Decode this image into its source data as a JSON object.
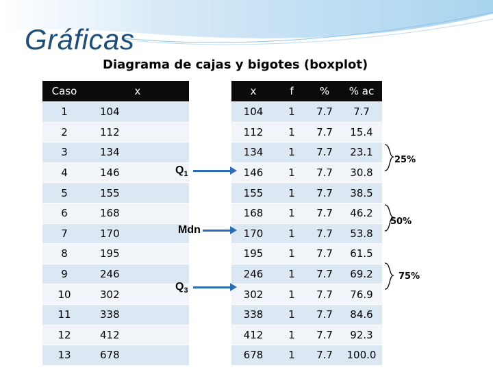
{
  "title": "Gráficas",
  "subtitle": "Diagrama de cajas y bigotes (boxplot)",
  "left_table": {
    "headers": [
      "Caso",
      "x"
    ],
    "rows": [
      [
        "1",
        "104"
      ],
      [
        "2",
        "112"
      ],
      [
        "3",
        "134"
      ],
      [
        "4",
        "146"
      ],
      [
        "5",
        "155"
      ],
      [
        "6",
        "168"
      ],
      [
        "7",
        "170"
      ],
      [
        "8",
        "195"
      ],
      [
        "9",
        "246"
      ],
      [
        "10",
        "302"
      ],
      [
        "11",
        "338"
      ],
      [
        "12",
        "412"
      ],
      [
        "13",
        "678"
      ]
    ]
  },
  "right_table": {
    "headers": [
      "x",
      "f",
      "%",
      "% ac"
    ],
    "rows": [
      [
        "104",
        "1",
        "7.7",
        "7.7"
      ],
      [
        "112",
        "1",
        "7.7",
        "15.4"
      ],
      [
        "134",
        "1",
        "7.7",
        "23.1"
      ],
      [
        "146",
        "1",
        "7.7",
        "30.8"
      ],
      [
        "155",
        "1",
        "7.7",
        "38.5"
      ],
      [
        "168",
        "1",
        "7.7",
        "46.2"
      ],
      [
        "170",
        "1",
        "7.7",
        "53.8"
      ],
      [
        "195",
        "1",
        "7.7",
        "61.5"
      ],
      [
        "246",
        "1",
        "7.7",
        "69.2"
      ],
      [
        "302",
        "1",
        "7.7",
        "76.9"
      ],
      [
        "338",
        "1",
        "7.7",
        "84.6"
      ],
      [
        "412",
        "1",
        "7.7",
        "92.3"
      ],
      [
        "678",
        "1",
        "7.7",
        "100.0"
      ]
    ]
  },
  "markers": {
    "q1": {
      "label": "Q",
      "sub": "1"
    },
    "mdn": {
      "label": "Mdn"
    },
    "q3": {
      "label": "Q",
      "sub": "3"
    }
  },
  "percent_labels": {
    "p25": "25%",
    "p50": "50%",
    "p75": "75%"
  },
  "colors": {
    "title": "#1f4e79",
    "arrow": "#2e6db3",
    "header_bg": "#0b0b0b",
    "row_odd": "#dbe7f3",
    "row_even": "#f1f5fa"
  }
}
